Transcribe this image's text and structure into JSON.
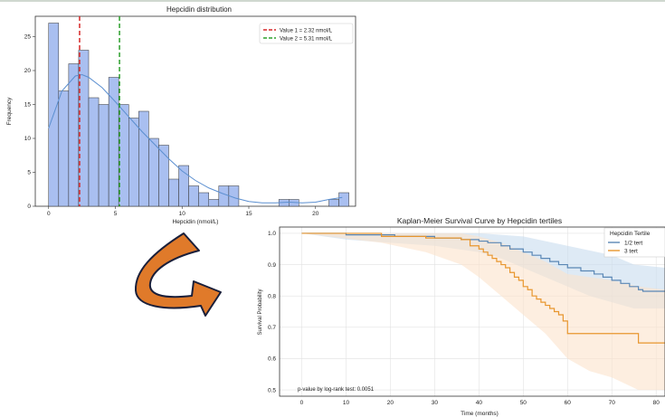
{
  "chart_data": [
    {
      "type": "bar",
      "title": "Hepcidin distribution",
      "xlabel": "Hepcidin (nmol/L)",
      "ylabel": "Frequency",
      "xlim": [
        -1,
        23
      ],
      "ylim": [
        0,
        28
      ],
      "xticks": [
        0,
        5,
        10,
        15,
        20
      ],
      "yticks": [
        0,
        5,
        10,
        15,
        20,
        25
      ],
      "bin_width": 0.75,
      "bin_starts": [
        0,
        0.75,
        1.5,
        2.25,
        3,
        3.75,
        4.5,
        5.25,
        6,
        6.75,
        7.5,
        8.25,
        9,
        9.75,
        10.5,
        11.25,
        12,
        12.75,
        13.5,
        14.25,
        15,
        15.75,
        16.5,
        17.25,
        18,
        18.75,
        19.5,
        20.25,
        21,
        21.75
      ],
      "values": [
        27,
        17,
        21,
        23,
        16,
        15,
        19,
        15,
        13,
        14,
        10,
        9,
        4,
        6,
        3,
        2,
        1,
        3,
        3,
        0,
        0,
        0,
        0,
        1,
        1,
        0,
        0,
        0,
        1,
        2
      ],
      "bar_color": "#a9bff0",
      "bar_edge_color": "#333333",
      "kde": {
        "x": [
          0,
          1,
          2,
          2.5,
          3,
          4,
          5,
          6,
          7,
          8,
          9,
          10,
          11,
          12,
          13,
          14,
          15,
          16,
          17,
          18,
          19,
          20,
          21,
          22
        ],
        "y": [
          11.5,
          17,
          19.2,
          19.4,
          19,
          17.5,
          15.4,
          13.2,
          11,
          9,
          7,
          5.2,
          3.8,
          2.7,
          1.9,
          1.2,
          0.7,
          0.5,
          0.5,
          0.6,
          0.5,
          0.6,
          1.0,
          1.3
        ],
        "color": "#5b8fd0"
      },
      "reference_lines": [
        {
          "x": 2.32,
          "label": "Value 1 = 2.32 nmol/L",
          "color": "#d62728",
          "style": "dashed"
        },
        {
          "x": 5.31,
          "label": "Value 2 = 5.31 nmol/L",
          "color": "#2ca02c",
          "style": "dashed"
        }
      ],
      "legend_position": "top-right",
      "grid": false
    },
    {
      "type": "line",
      "title": "Kaplan-Meier Survival Curve by Hepcidin tertiles",
      "xlabel": "Time (months)",
      "ylabel": "Survival Probability",
      "xlim": [
        -5,
        82
      ],
      "ylim": [
        0.48,
        1.02
      ],
      "xticks": [
        0,
        10,
        20,
        30,
        40,
        50,
        60,
        70,
        80
      ],
      "yticks": [
        0.5,
        0.6,
        0.7,
        0.8,
        0.9,
        1.0
      ],
      "ytick_labels": [
        "0.5",
        "0.6",
        "0.7",
        "0.8",
        "0.9",
        "1.0"
      ],
      "legend_title": "Hepcidin Tertile",
      "legend_position": "top-right",
      "grid": true,
      "annotation": "p-value by log-rank test: 0.0051",
      "series": [
        {
          "name": "1/2 tert",
          "color": "#5a87b5",
          "ci_color": "#c8dcee",
          "steps": [
            [
              0,
              1.0
            ],
            [
              10,
              1.0
            ],
            [
              10,
              0.995
            ],
            [
              21,
              0.99
            ],
            [
              30,
              0.985
            ],
            [
              36,
              0.98
            ],
            [
              40,
              0.975
            ],
            [
              42,
              0.97
            ],
            [
              45,
              0.96
            ],
            [
              47,
              0.95
            ],
            [
              50,
              0.94
            ],
            [
              52,
              0.93
            ],
            [
              54,
              0.92
            ],
            [
              56,
              0.91
            ],
            [
              58,
              0.9
            ],
            [
              60,
              0.89
            ],
            [
              63,
              0.88
            ],
            [
              66,
              0.87
            ],
            [
              68,
              0.86
            ],
            [
              70,
              0.85
            ],
            [
              72,
              0.84
            ],
            [
              74,
              0.83
            ],
            [
              76,
              0.82
            ],
            [
              77,
              0.815
            ],
            [
              82,
              0.815
            ]
          ],
          "ci_lower": [
            [
              0,
              1.0
            ],
            [
              10,
              0.98
            ],
            [
              20,
              0.97
            ],
            [
              30,
              0.96
            ],
            [
              40,
              0.94
            ],
            [
              45,
              0.92
            ],
            [
              50,
              0.89
            ],
            [
              55,
              0.86
            ],
            [
              60,
              0.83
            ],
            [
              65,
              0.8
            ],
            [
              70,
              0.78
            ],
            [
              75,
              0.76
            ],
            [
              82,
              0.76
            ]
          ],
          "ci_upper": [
            [
              0,
              1.0
            ],
            [
              10,
              1.0
            ],
            [
              40,
              1.0
            ],
            [
              50,
              0.99
            ],
            [
              60,
              0.96
            ],
            [
              70,
              0.93
            ],
            [
              75,
              0.9
            ],
            [
              82,
              0.89
            ]
          ]
        },
        {
          "name": "3 tert",
          "color": "#e8962e",
          "ci_color": "#fbe3cc",
          "steps": [
            [
              0,
              1.0
            ],
            [
              18,
              1.0
            ],
            [
              18,
              0.99
            ],
            [
              28,
              0.985
            ],
            [
              36,
              0.98
            ],
            [
              38,
              0.96
            ],
            [
              40,
              0.95
            ],
            [
              41,
              0.94
            ],
            [
              42,
              0.93
            ],
            [
              43,
              0.92
            ],
            [
              44,
              0.91
            ],
            [
              45,
              0.9
            ],
            [
              46,
              0.89
            ],
            [
              47,
              0.875
            ],
            [
              48,
              0.86
            ],
            [
              49,
              0.85
            ],
            [
              50,
              0.83
            ],
            [
              51,
              0.82
            ],
            [
              52,
              0.8
            ],
            [
              53,
              0.79
            ],
            [
              54,
              0.78
            ],
            [
              55,
              0.77
            ],
            [
              56,
              0.76
            ],
            [
              57,
              0.75
            ],
            [
              58,
              0.74
            ],
            [
              59,
              0.72
            ],
            [
              60,
              0.68
            ],
            [
              64,
              0.68
            ],
            [
              68,
              0.68
            ],
            [
              76,
              0.68
            ],
            [
              76,
              0.65
            ],
            [
              82,
              0.65
            ]
          ],
          "ci_lower": [
            [
              0,
              1.0
            ],
            [
              18,
              0.97
            ],
            [
              28,
              0.94
            ],
            [
              36,
              0.9
            ],
            [
              40,
              0.86
            ],
            [
              45,
              0.8
            ],
            [
              50,
              0.74
            ],
            [
              55,
              0.68
            ],
            [
              60,
              0.6
            ],
            [
              65,
              0.56
            ],
            [
              70,
              0.54
            ],
            [
              76,
              0.5
            ],
            [
              82,
              0.5
            ]
          ],
          "ci_upper": [
            [
              0,
              1.0
            ],
            [
              18,
              1.0
            ],
            [
              36,
              1.0
            ],
            [
              40,
              0.99
            ],
            [
              45,
              0.97
            ],
            [
              50,
              0.94
            ],
            [
              55,
              0.91
            ],
            [
              60,
              0.87
            ],
            [
              65,
              0.86
            ],
            [
              70,
              0.85
            ],
            [
              76,
              0.83
            ],
            [
              82,
              0.82
            ]
          ]
        }
      ]
    }
  ],
  "arrow": {
    "fill": "#e07a2a",
    "stroke": "#1a1f3a"
  }
}
